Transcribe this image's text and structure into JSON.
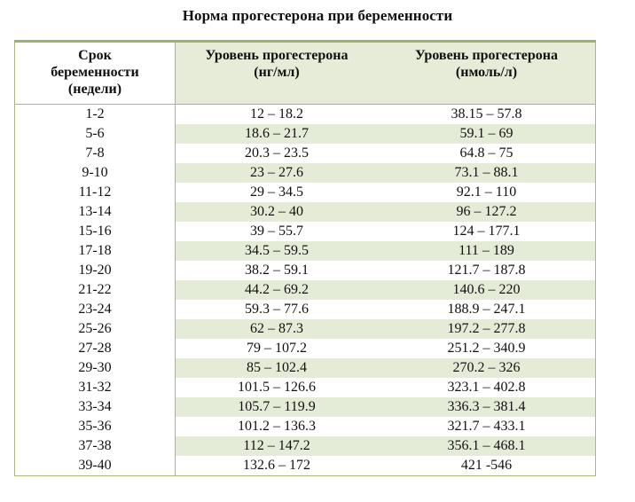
{
  "title": "Норма прогестерона при беременности",
  "table": {
    "headers": {
      "col1": [
        "Срок",
        "беременности",
        "(недели)"
      ],
      "col2": [
        "Уровень прогестерона",
        "(нг/мл)"
      ],
      "col3": [
        "Уровень прогестерона",
        "(нмоль/л)"
      ]
    },
    "rows": [
      {
        "weeks": "1-2",
        "ng_ml": "12 – 18.2",
        "nmol_l": "38.15 – 57.8"
      },
      {
        "weeks": "5-6",
        "ng_ml": "18.6 – 21.7",
        "nmol_l": "59.1 – 69"
      },
      {
        "weeks": "7-8",
        "ng_ml": "20.3 – 23.5",
        "nmol_l": "64.8 – 75"
      },
      {
        "weeks": "9-10",
        "ng_ml": "23 – 27.6",
        "nmol_l": "73.1 – 88.1"
      },
      {
        "weeks": "11-12",
        "ng_ml": "29 – 34.5",
        "nmol_l": "92.1 – 110"
      },
      {
        "weeks": "13-14",
        "ng_ml": "30.2 – 40",
        "nmol_l": "96 – 127.2"
      },
      {
        "weeks": "15-16",
        "ng_ml": "39 – 55.7",
        "nmol_l": "124 – 177.1"
      },
      {
        "weeks": "17-18",
        "ng_ml": "34.5 – 59.5",
        "nmol_l": "111 – 189"
      },
      {
        "weeks": "19-20",
        "ng_ml": "38.2 – 59.1",
        "nmol_l": "121.7 – 187.8"
      },
      {
        "weeks": "21-22",
        "ng_ml": "44.2 – 69.2",
        "nmol_l": "140.6 – 220"
      },
      {
        "weeks": "23-24",
        "ng_ml": "59.3 – 77.6",
        "nmol_l": "188.9 – 247.1"
      },
      {
        "weeks": "25-26",
        "ng_ml": "62 – 87.3",
        "nmol_l": "197.2 – 277.8"
      },
      {
        "weeks": "27-28",
        "ng_ml": "79 – 107.2",
        "nmol_l": "251.2 – 340.9"
      },
      {
        "weeks": "29-30",
        "ng_ml": "85 – 102.4",
        "nmol_l": "270.2 – 326"
      },
      {
        "weeks": "31-32",
        "ng_ml": "101.5 – 126.6",
        "nmol_l": "323.1 – 402.8"
      },
      {
        "weeks": "33-34",
        "ng_ml": "105.7 – 119.9",
        "nmol_l": "336.3 – 381.4"
      },
      {
        "weeks": "35-36",
        "ng_ml": "101.2 – 136.3",
        "nmol_l": "321.7 – 433.1"
      },
      {
        "weeks": "37-38",
        "ng_ml": "112 – 147.2",
        "nmol_l": "356.1 – 468.1"
      },
      {
        "weeks": "39-40",
        "ng_ml": "132.6 – 172",
        "nmol_l": "421 -546"
      }
    ]
  },
  "colors": {
    "stripe": "#e4ebd6",
    "header_fill": "#e6ecd8",
    "border": "#a9b882",
    "top_border": "#9cb36e"
  }
}
